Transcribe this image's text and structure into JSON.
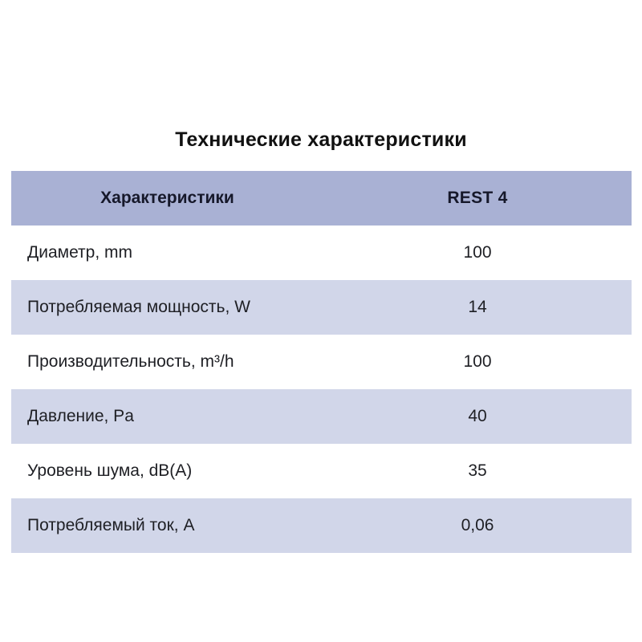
{
  "page": {
    "title": "Технические характеристики"
  },
  "chart_data": {
    "type": "table",
    "title": "Технические характеристики",
    "columns": [
      "Характеристики",
      "REST 4"
    ],
    "rows": [
      [
        "Диаметр, mm",
        "100"
      ],
      [
        "Потребляемая мощность, W",
        "14"
      ],
      [
        "Производительность, m³/h",
        "100"
      ],
      [
        "Давление, Pa",
        "40"
      ],
      [
        "Уровень шума, dB(A)",
        "35"
      ],
      [
        "Потребляемый ток, А",
        "0,06"
      ]
    ]
  },
  "colors": {
    "header_bg": "#a9b1d4",
    "row_alt_bg": "#d1d6e9",
    "row_bg": "#ffffff",
    "text": "#1e1f24",
    "title_text": "#111111"
  }
}
